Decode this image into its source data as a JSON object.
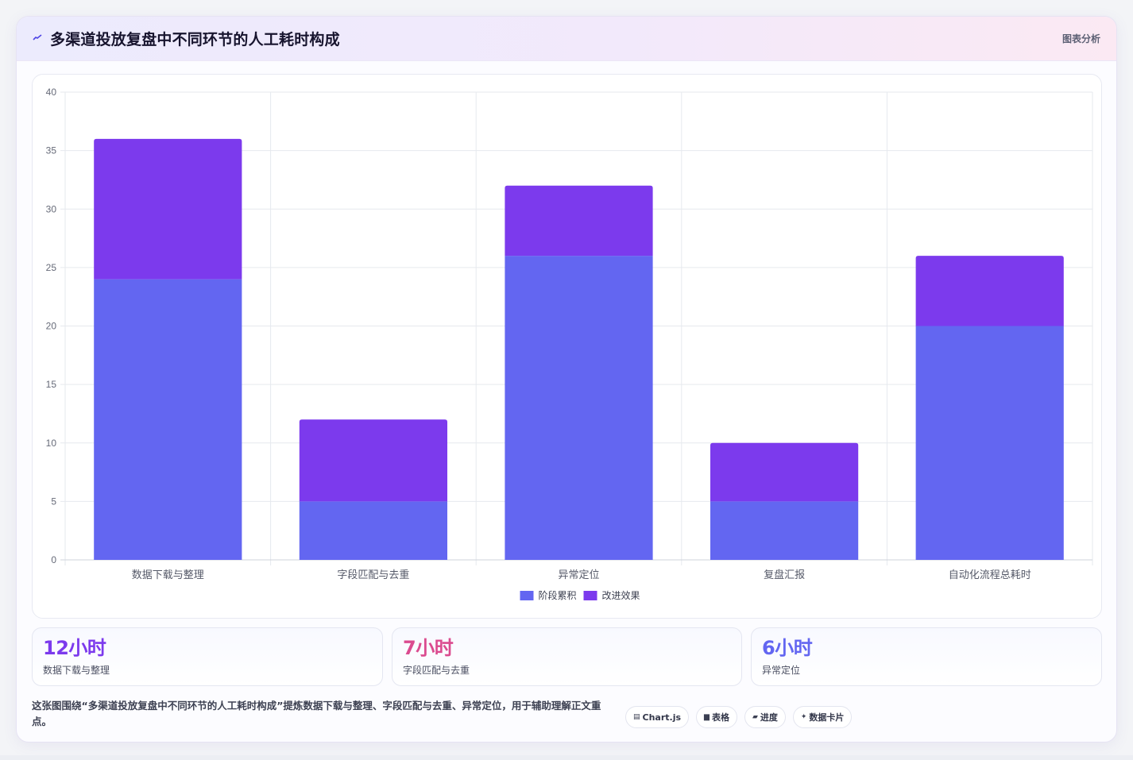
{
  "header": {
    "icon": "line-chart-icon",
    "title": "多渠道投放复盘中不同环节的人工耗时构成",
    "badge": "图表分析"
  },
  "chart_data": {
    "type": "bar",
    "stacked": true,
    "categories": [
      "数据下载与整理",
      "字段匹配与去重",
      "异常定位",
      "复盘汇报",
      "自动化流程总耗时"
    ],
    "series": [
      {
        "name": "阶段累积",
        "values": [
          24,
          5,
          26,
          5,
          20
        ],
        "color": "#6366f1"
      },
      {
        "name": "改进效果",
        "values": [
          12,
          7,
          6,
          5,
          6
        ],
        "color": "#7c3aed"
      }
    ],
    "ylim": [
      0,
      40
    ],
    "yticks": [
      0,
      5,
      10,
      15,
      20,
      25,
      30,
      35,
      40
    ],
    "grid": true,
    "legend_position": "bottom"
  },
  "stats": [
    {
      "value": "12小时",
      "label": "数据下载与整理",
      "color": "#7c3aed"
    },
    {
      "value": "7小时",
      "label": "字段匹配与去重",
      "color": "#db4b8f"
    },
    {
      "value": "6小时",
      "label": "异常定位",
      "color": "#6366f1"
    }
  ],
  "note": "这张图围绕“多渠道投放复盘中不同环节的人工耗时构成”提炼数据下载与整理、字段匹配与去重、异常定位，用于辅助理解正文重点。",
  "tags": [
    {
      "icon": "chart-icon",
      "glyph": "▤",
      "label": "Chart.js"
    },
    {
      "icon": "table-icon",
      "glyph": "▆",
      "label": "表格"
    },
    {
      "icon": "progress-icon",
      "glyph": "▰",
      "label": "进度"
    },
    {
      "icon": "sparkle-icon",
      "glyph": "✦",
      "label": "数据卡片"
    }
  ]
}
